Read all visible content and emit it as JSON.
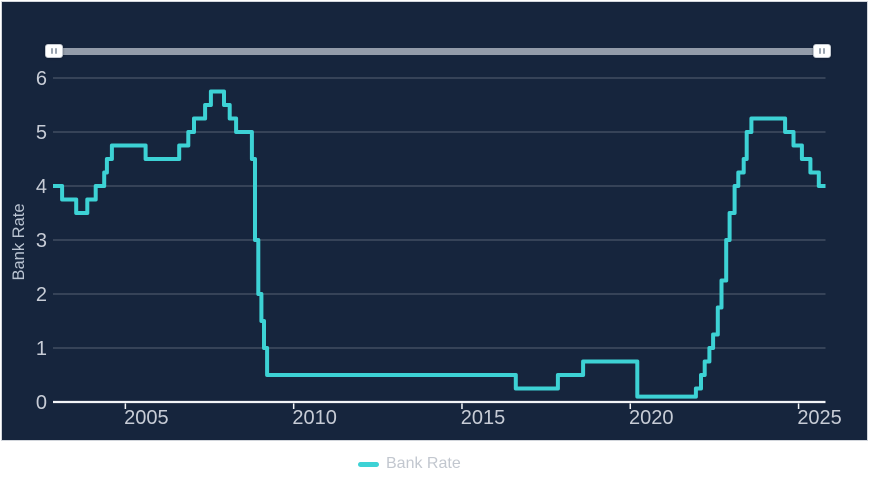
{
  "colors": {
    "page_bg": "#ffffff",
    "panel_bg": "#16253d",
    "panel_border": "#d2d6dc",
    "line": "#3dd2d5",
    "grid": "rgba(255,255,255,0.28)",
    "axis": "#f2f4f7",
    "tick_label": "#c7ccd6",
    "axis_title": "#bac4d2",
    "legend_text": "#c2c7cf",
    "slider_track": "#939caa",
    "slider_handle": "#ffffff",
    "slider_grip": "#9aa4b0"
  },
  "icons": {
    "slider_grip": "||"
  },
  "slider": {
    "type": "date-range",
    "position": "top"
  },
  "chart_data": {
    "type": "line",
    "line_style": "step-after",
    "title": "",
    "xlabel": "",
    "ylabel": "Bank Rate",
    "grid": "horizontal",
    "legend_position": "bottom-center",
    "legend": [
      "Bank Rate"
    ],
    "xlim": [
      2002.85,
      2025.8
    ],
    "ylim": [
      0,
      6.2
    ],
    "xticks": [
      2005,
      2010,
      2015,
      2020,
      2025
    ],
    "yticks": [
      0,
      1,
      2,
      3,
      4,
      5,
      6
    ],
    "series": [
      {
        "name": "Bank Rate",
        "color": "#3dd2d5",
        "points": [
          [
            2002.85,
            4.0
          ],
          [
            2003.12,
            3.75
          ],
          [
            2003.54,
            3.5
          ],
          [
            2003.87,
            3.75
          ],
          [
            2004.12,
            4.0
          ],
          [
            2004.37,
            4.25
          ],
          [
            2004.45,
            4.5
          ],
          [
            2004.6,
            4.75
          ],
          [
            2005.6,
            4.5
          ],
          [
            2006.6,
            4.75
          ],
          [
            2006.87,
            5.0
          ],
          [
            2007.04,
            5.25
          ],
          [
            2007.37,
            5.5
          ],
          [
            2007.54,
            5.75
          ],
          [
            2007.93,
            5.5
          ],
          [
            2008.1,
            5.25
          ],
          [
            2008.29,
            5.0
          ],
          [
            2008.76,
            4.5
          ],
          [
            2008.85,
            3.0
          ],
          [
            2008.95,
            2.0
          ],
          [
            2009.04,
            1.5
          ],
          [
            2009.12,
            1.0
          ],
          [
            2009.21,
            0.5
          ],
          [
            2016.6,
            0.25
          ],
          [
            2017.85,
            0.5
          ],
          [
            2018.6,
            0.75
          ],
          [
            2020.21,
            0.1
          ],
          [
            2021.95,
            0.25
          ],
          [
            2022.1,
            0.5
          ],
          [
            2022.21,
            0.75
          ],
          [
            2022.35,
            1.0
          ],
          [
            2022.46,
            1.25
          ],
          [
            2022.6,
            1.75
          ],
          [
            2022.71,
            2.25
          ],
          [
            2022.85,
            3.0
          ],
          [
            2022.95,
            3.5
          ],
          [
            2023.1,
            4.0
          ],
          [
            2023.21,
            4.25
          ],
          [
            2023.37,
            4.5
          ],
          [
            2023.46,
            5.0
          ],
          [
            2023.6,
            5.25
          ],
          [
            2024.6,
            5.0
          ],
          [
            2024.85,
            4.75
          ],
          [
            2025.1,
            4.5
          ],
          [
            2025.35,
            4.25
          ],
          [
            2025.6,
            4.0
          ]
        ]
      }
    ]
  }
}
